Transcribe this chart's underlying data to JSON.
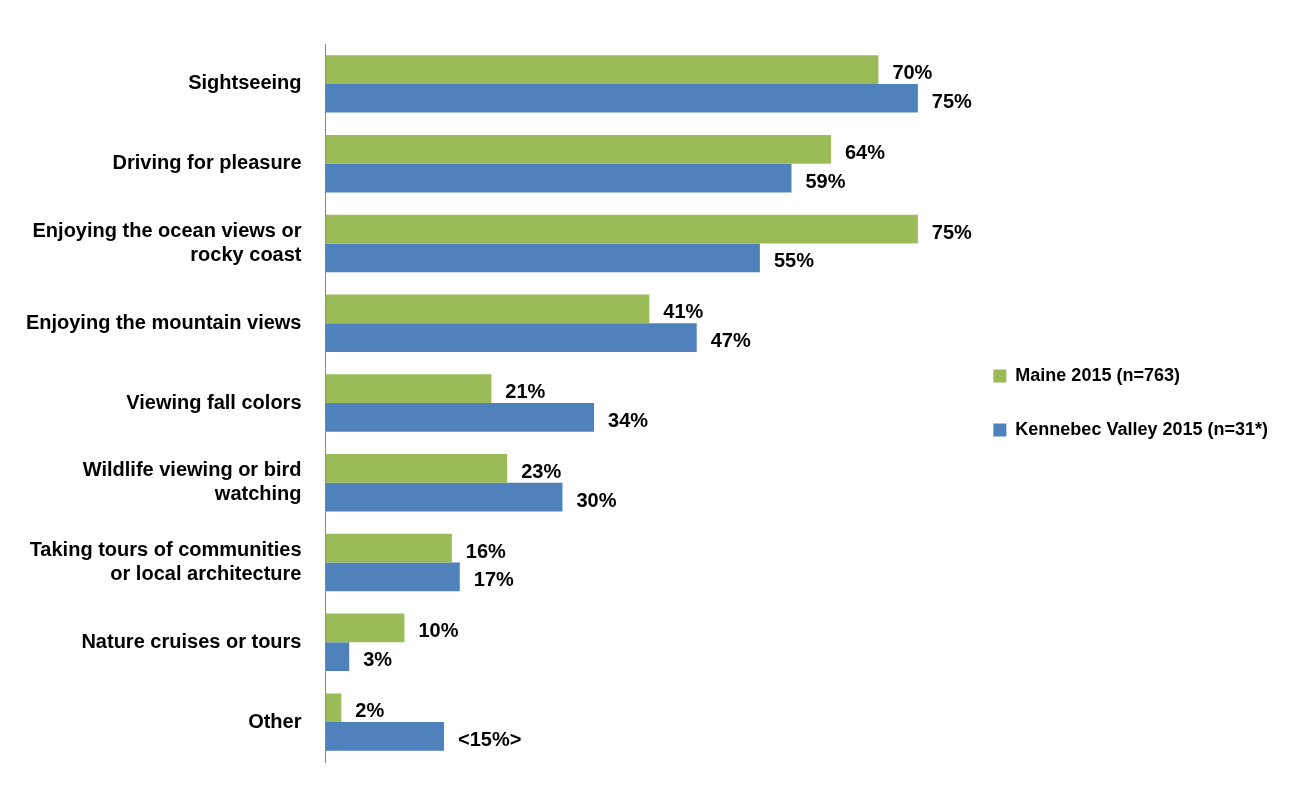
{
  "chart_data": {
    "type": "bar",
    "orientation": "horizontal",
    "categories": [
      "Sightseeing",
      "Driving for pleasure",
      "Enjoying the ocean views or rocky coast",
      "Enjoying the mountain views",
      "Viewing fall colors",
      "Wildlife viewing or bird watching",
      "Taking tours of communities or local architecture",
      "Nature cruises or tours",
      "Other"
    ],
    "series": [
      {
        "name": "Maine 2015 (n=763)",
        "color": "#9bbb59",
        "values": [
          70,
          64,
          75,
          41,
          21,
          23,
          16,
          10,
          2
        ],
        "value_labels": [
          "70%",
          "64%",
          "75%",
          "41%",
          "21%",
          "23%",
          "16%",
          "10%",
          "2%"
        ]
      },
      {
        "name": "Kennebec Valley 2015 (n=31*)",
        "color": "#4f81bd",
        "values": [
          75,
          59,
          55,
          47,
          34,
          30,
          17,
          3,
          15
        ],
        "value_labels": [
          "75%",
          "59%",
          "55%",
          "47%",
          "34%",
          "30%",
          "17%",
          "3%",
          "<15%>"
        ]
      }
    ],
    "grid": false,
    "legend": "right"
  }
}
